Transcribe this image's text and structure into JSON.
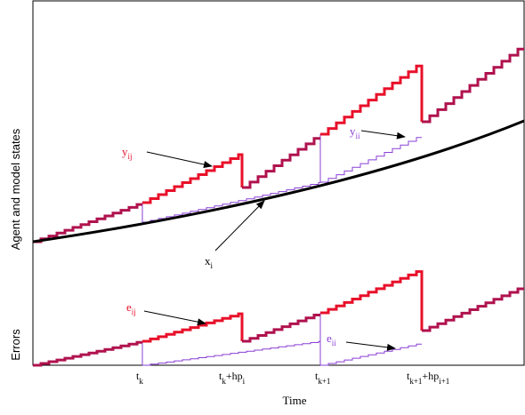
{
  "axes": {
    "y_label_top": "Agent and model states",
    "y_label_bottom": "Errors",
    "x_label": "Time"
  },
  "ticks": [
    {
      "main": "t",
      "sub": "k",
      "rest": "",
      "sub2": ""
    },
    {
      "main": "t",
      "sub": "k",
      "rest": "+hp",
      "sub2": "i"
    },
    {
      "main": "t",
      "sub": "k+1",
      "rest": "",
      "sub2": ""
    },
    {
      "main": "t",
      "sub": "k+1",
      "rest": "+hp",
      "sub2": "i+1"
    }
  ],
  "annotations": {
    "y_ij": {
      "main": "y",
      "sub": "ij"
    },
    "y_ii": {
      "main": "y",
      "sub": "ii"
    },
    "x_i": {
      "main": "x",
      "sub": "i"
    },
    "e_ij": {
      "main": "e",
      "sub": "ij"
    },
    "e_ii": {
      "main": "e",
      "sub": "ii"
    }
  },
  "colors": {
    "agent_red": "#e8102a",
    "model_purple": "#8a3fd6",
    "overlap_crimson": "#b0124e",
    "true_state_black": "#000000"
  }
}
